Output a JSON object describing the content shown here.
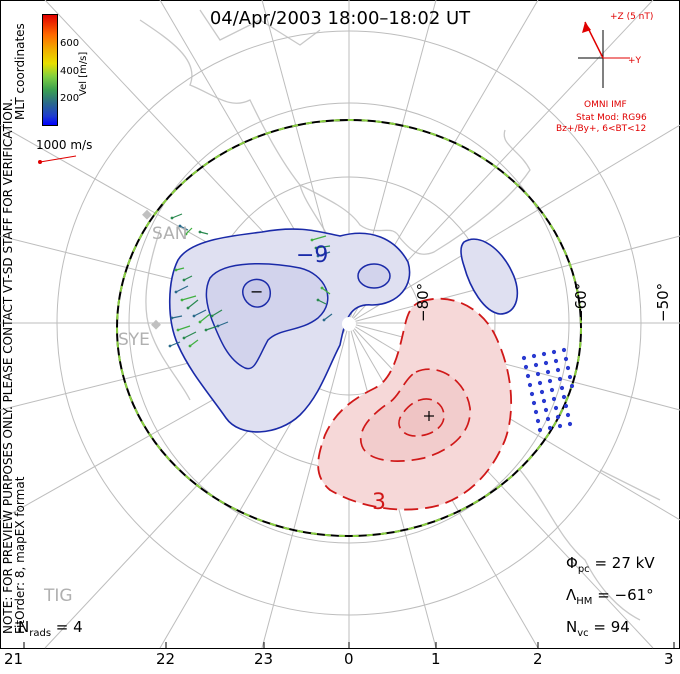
{
  "title": "04/Apr/2003 18:00–18:02 UT",
  "legend": {
    "unit": "Vel [m/s]",
    "ticks": [
      "600",
      "400",
      "200"
    ],
    "colors": [
      "#e00000",
      "#ff6a00",
      "#e8e000",
      "#80d040",
      "#2a6a8a",
      "#0000ff"
    ]
  },
  "scale_label": "1000 m/s",
  "side_note": {
    "line1": "NOTE: FOR PREVIEW PURPOSES ONLY. PLEASE CONTACT VT-SD STAFF FOR VERIFICATION.",
    "line2": "FitOrder: 8, mapEX format",
    "coords": "MLT coordinates"
  },
  "imf": {
    "z_label": "+Z (5 nT)",
    "y_label": "+Y",
    "omni": "OMNI IMF",
    "stat_mod": "Stat Mod: RG96",
    "condition": "Bz+/By+, 6<BT<12",
    "color": "#e00000"
  },
  "stats": {
    "phi_pc_sym": "Φ",
    "phi_pc_sub": "pc",
    "phi_pc_val": " = 27 kV",
    "lambda_sym": "Λ",
    "lambda_sub": "HM",
    "lambda_val": " = −61°",
    "nvc_sym": "N",
    "nvc_sub": "vc",
    "nvc_val": " = 94",
    "nrads_sym": "N",
    "nrads_sub": "rads",
    "nrads_val": " = 4"
  },
  "latitude_labels": [
    "−80°",
    "−60°",
    "−50°"
  ],
  "hour_labels": [
    "21",
    "22",
    "23",
    "0",
    "1",
    "2",
    "3"
  ],
  "sites": [
    "SAN",
    "SYE",
    "TIG"
  ],
  "contours": {
    "neg_label": "−9",
    "pos_label": "3",
    "min_marker": "−",
    "max_marker": "+"
  },
  "colors": {
    "negative_fill": "#dcdcf0",
    "negative_line": "#1a2aa8",
    "positive_fill": "#f6d8d8",
    "positive_line": "#d01818"
  }
}
